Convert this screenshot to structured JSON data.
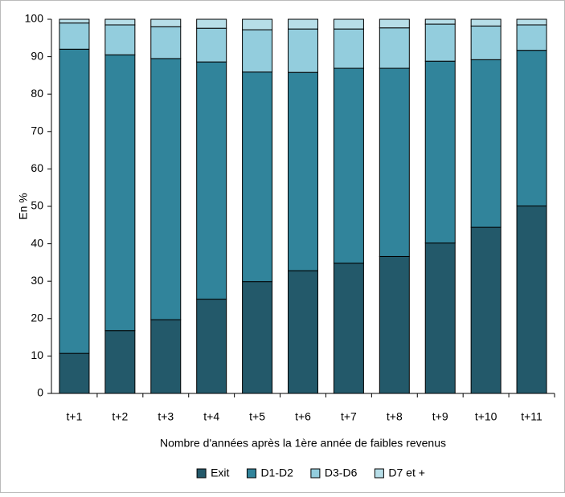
{
  "chart_data": {
    "type": "stacked-bar",
    "y_label": "En %",
    "x_label": "Nombre d'années après la 1ère année de faibles revenus",
    "categories": [
      "t+1",
      "t+2",
      "t+3",
      "t+4",
      "t+5",
      "t+6",
      "t+7",
      "t+8",
      "t+9",
      "t+10",
      "t+11"
    ],
    "series": [
      {
        "name": "Exit",
        "color": "#23596a",
        "values": [
          10.7,
          16.8,
          19.7,
          25.2,
          29.9,
          32.8,
          34.8,
          36.6,
          40.2,
          44.4,
          50.1
        ]
      },
      {
        "name": "D1-D2",
        "color": "#31849b",
        "values": [
          81.3,
          73.7,
          69.8,
          63.4,
          56,
          53,
          52.1,
          50.3,
          48.6,
          44.8,
          41.6
        ]
      },
      {
        "name": "D3-D6",
        "color": "#93cddd",
        "values": [
          7,
          8,
          8.5,
          9,
          11.3,
          11.6,
          10.5,
          10.8,
          9.9,
          9,
          6.8
        ]
      },
      {
        "name": "D7 et +",
        "color": "#b7dee8",
        "values": [
          1,
          1.5,
          2,
          2.4,
          2.8,
          2.6,
          2.6,
          2.3,
          1.3,
          1.8,
          1.5
        ]
      }
    ],
    "ylim": [
      0,
      100
    ],
    "yticks": [
      0,
      10,
      20,
      30,
      40,
      50,
      60,
      70,
      80,
      90,
      100
    ],
    "grid": false,
    "legend": "bottom"
  }
}
